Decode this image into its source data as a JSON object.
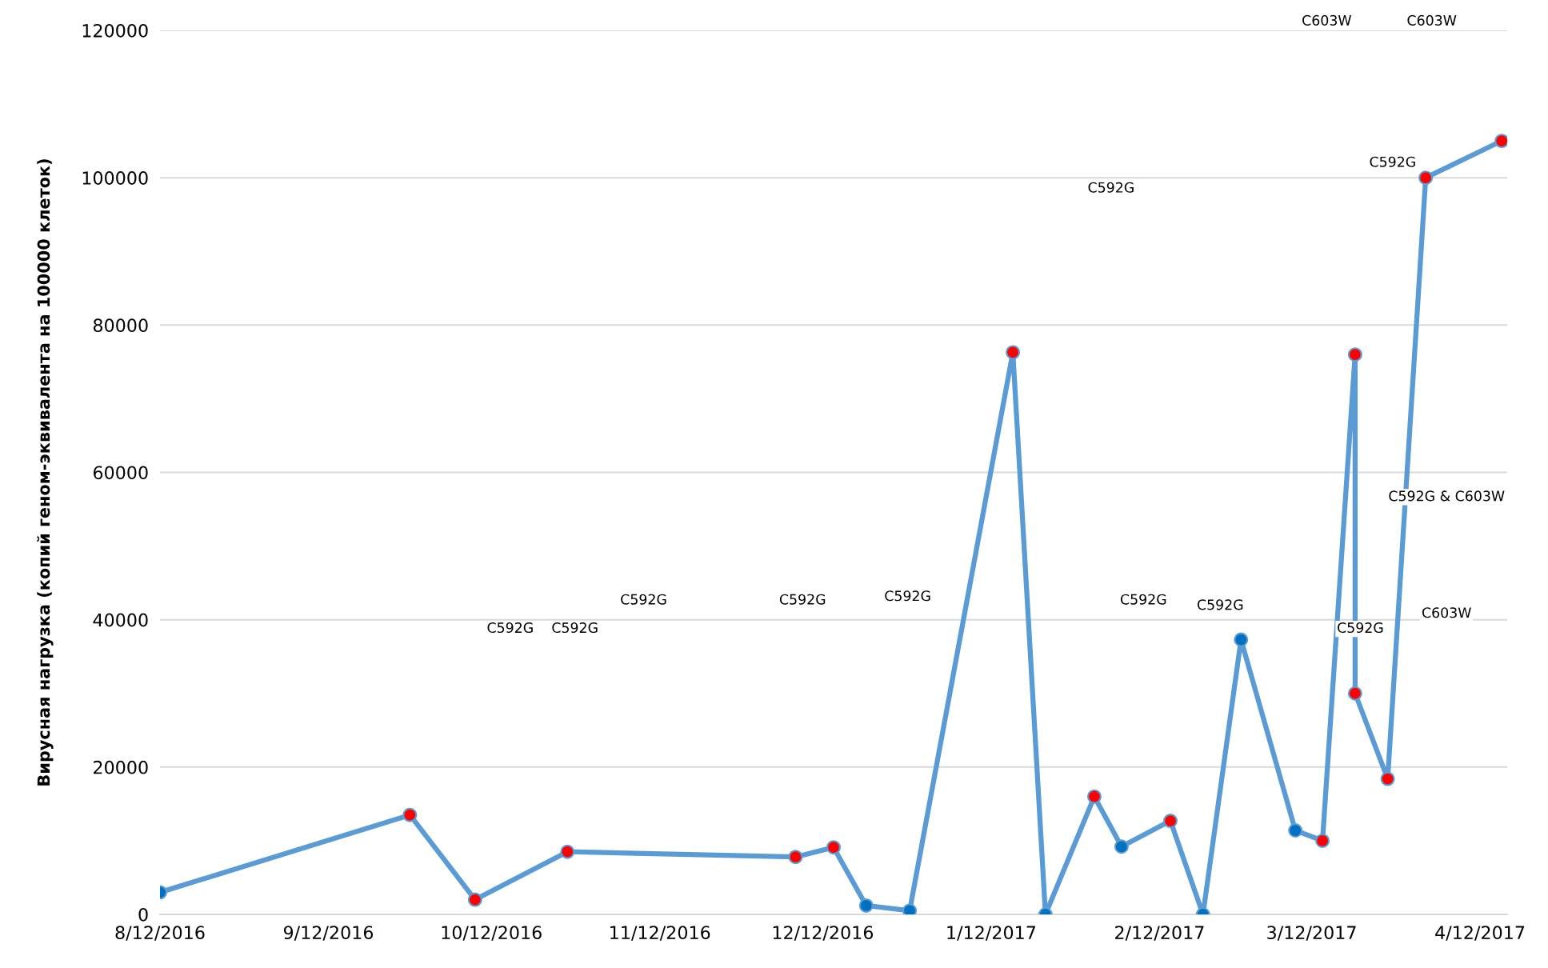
{
  "chart_data": {
    "type": "line",
    "ylabel": "Вирусная нагрузка (копий геном-эквивалента на 100000 клеток)",
    "x": [
      "2016-08-12",
      "2016-09-27",
      "2016-10-09",
      "2016-10-26",
      "2016-12-07",
      "2016-12-14",
      "2016-12-20",
      "2016-12-28",
      "2017-01-16",
      "2017-01-22",
      "2017-01-31",
      "2017-02-05",
      "2017-02-14",
      "2017-02-20",
      "2017-02-27",
      "2017-03-09",
      "2017-03-14",
      "2017-03-20",
      "2017-03-20",
      "2017-03-26",
      "2017-04-02",
      "2017-04-16"
    ],
    "series": [
      {
        "color": "#5b9bd5",
        "values": [
          3000,
          13500,
          2000,
          8500,
          7800,
          9100,
          1200,
          500,
          76300,
          0,
          16000,
          9200,
          12700,
          0,
          37300,
          11400,
          10000,
          76000,
          30000,
          18400,
          100000,
          105000
        ],
        "colors": [
          "#0070c0",
          "#ff0000",
          "#ff0000",
          "#ff0000",
          "#ff0000",
          "#ff0000",
          "#0070c0",
          "#0070c0",
          "#ff0000",
          "#0070c0",
          "#ff0000",
          "#0070c0",
          "#ff0000",
          "#0070c0",
          "#0070c0",
          "#0070c0",
          "#ff0000",
          "#ff0000",
          "#ff0000",
          "#ff0000",
          "#ff0000",
          "#ff0000"
        ]
      }
    ],
    "xlim": [
      "2016-08-12",
      "2017-04-17"
    ],
    "xticks": [
      {
        "value": "2016-08-12",
        "label": "8/12/2016"
      },
      {
        "value": "2016-09-12",
        "label": "9/12/2016"
      },
      {
        "value": "2016-10-12",
        "label": "10/12/2016"
      },
      {
        "value": "2016-11-12",
        "label": "11/12/2016"
      },
      {
        "value": "2016-12-12",
        "label": "12/12/2016"
      },
      {
        "value": "2017-01-12",
        "label": "1/12/2017"
      },
      {
        "value": "2017-02-12",
        "label": "2/12/2017"
      },
      {
        "value": "2017-03-12",
        "label": "3/12/2017"
      },
      {
        "value": "2017-04-12",
        "label": "4/12/2017"
      }
    ],
    "ylim": [
      0,
      120000
    ],
    "yticks": [
      0,
      20000,
      40000,
      60000,
      80000,
      100000,
      120000
    ],
    "grid": "y",
    "marker": "circle",
    "line_style": "solid",
    "annotations": [
      "C592G",
      "C592G",
      "C592G",
      "C592G",
      "C592G",
      "C592G",
      "C592G",
      "C592G",
      "C592G",
      "C603W",
      "C592G & C603W",
      "C592G",
      "C603W",
      "C603W"
    ]
  }
}
